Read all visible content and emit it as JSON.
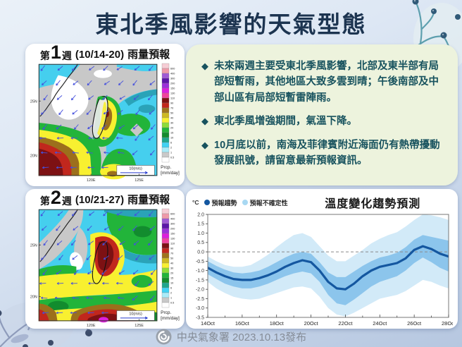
{
  "page": {
    "title": "東北季風影響的天氣型態",
    "footer": {
      "logo": "cwa-swirl-logo",
      "text": "中央氣象署 2023.10.13發布"
    }
  },
  "bulletin": {
    "bullet_glyph": "◆",
    "bullets": [
      "未來兩週主要受東北季風影響，北部及東半部有局部短暫雨，其他地區大致多雲到晴；午後南部及中部山區有局部短暫雷陣雨。",
      "東北季風增強期間，氣溫下降。",
      "10月底以前，南海及菲律賓附近海面仍有熱帶擾動發展訊號，請留意最新預報資訊。"
    ]
  },
  "maps": {
    "week1": {
      "prefix": "第",
      "number": "1",
      "suffix": "週",
      "date_range": "(10/14-20)",
      "label": "雨量預報",
      "lat_ticks": [
        "25N",
        "20N"
      ],
      "lon_ticks": [
        "120E",
        "125E"
      ]
    },
    "week2": {
      "prefix": "第",
      "number": "2",
      "suffix": "週",
      "date_range": "(10/21-27)",
      "label": "雨量預報",
      "lat_ticks": [
        "25N",
        "20N"
      ],
      "lon_ticks": [
        "120E",
        "125E"
      ]
    },
    "wind_ref_label": "10(m/s)",
    "wind_arrow_color": "#4550dd",
    "colorbar": {
      "title": "Prcp.",
      "unit": "[mm/day]",
      "colors_top_to_bottom": [
        "#f6cdd5",
        "#ef9aa9",
        "#a05ad5",
        "#5c16a9",
        "#9b30d9",
        "#dc1fdc",
        "#f0439d",
        "#7d1113",
        "#c1271d",
        "#9e731d",
        "#cdb821",
        "#f8f030",
        "#8edc39",
        "#22b43a",
        "#128c2e",
        "#1fa68c",
        "#40d2f3",
        "#a9ebf8",
        "#c9c9c9",
        "#ffffff"
      ],
      "labels_top_to_bottom": [
        "600",
        "400",
        "300",
        "200",
        "150",
        "130",
        "110",
        "90",
        "70",
        "50",
        "40",
        "30",
        "20",
        "15",
        "10",
        "6",
        "2",
        "1",
        "0.5"
      ]
    }
  },
  "chart_data": {
    "type": "line",
    "title": "溫度變化趨勢預測",
    "y_unit": "°C",
    "legend": [
      {
        "label": "預報趨勢",
        "color": "#1457a0"
      },
      {
        "label": "預報不確定性",
        "color": "#a8d8f2"
      }
    ],
    "xtick_labels": [
      "14Oct",
      "16Oct",
      "18Oct",
      "20Oct",
      "22Oct",
      "24Oct",
      "26Oct",
      "28Oct"
    ],
    "ytick_values": [
      2.0,
      1.5,
      1.0,
      0.5,
      0.0,
      -0.5,
      -1.0,
      -1.5,
      -2.0,
      -2.5,
      -3.0,
      -3.5
    ],
    "ylim": [
      -3.5,
      2.0
    ],
    "zero_reference_line": "dashed",
    "x_days_october": [
      14,
      14.5,
      15,
      15.5,
      16,
      16.5,
      17,
      17.5,
      18,
      18.5,
      19,
      19.5,
      20,
      20.5,
      21,
      21.5,
      22,
      22.5,
      23,
      23.5,
      24,
      24.5,
      25,
      25.5,
      26,
      26.5,
      27,
      27.5,
      28
    ],
    "series": {
      "trend": [
        -0.85,
        -1.1,
        -1.3,
        -1.45,
        -1.5,
        -1.5,
        -1.4,
        -1.25,
        -1.05,
        -0.8,
        -0.6,
        -0.45,
        -0.55,
        -1.0,
        -1.6,
        -1.95,
        -2.0,
        -1.7,
        -1.3,
        -1.0,
        -0.8,
        -0.7,
        -0.6,
        -0.35,
        0.1,
        0.3,
        0.15,
        -0.1,
        -0.25
      ],
      "uncertainty_inner": {
        "upper": [
          -0.5,
          -0.75,
          -0.95,
          -1.1,
          -1.15,
          -1.1,
          -1.0,
          -0.8,
          -0.55,
          -0.3,
          -0.1,
          0.0,
          -0.1,
          -0.55,
          -1.1,
          -1.35,
          -1.35,
          -1.05,
          -0.75,
          -0.5,
          -0.3,
          -0.2,
          -0.05,
          0.25,
          0.65,
          0.9,
          0.8,
          0.7,
          0.6
        ],
        "lower": [
          -1.2,
          -1.45,
          -1.7,
          -1.85,
          -1.95,
          -1.95,
          -1.85,
          -1.7,
          -1.5,
          -1.3,
          -1.15,
          -1.05,
          -1.15,
          -1.6,
          -2.3,
          -2.75,
          -2.85,
          -2.55,
          -2.2,
          -1.85,
          -1.6,
          -1.45,
          -1.3,
          -1.0,
          -0.6,
          -0.3,
          -0.55,
          -0.85,
          -1.05
        ]
      },
      "uncertainty_outer": {
        "upper": [
          -0.25,
          -0.5,
          -0.7,
          -0.8,
          -0.8,
          -0.7,
          -0.45,
          -0.15,
          0.25,
          0.6,
          0.9,
          1.0,
          0.8,
          0.3,
          -0.2,
          -0.5,
          -0.5,
          -0.2,
          0.1,
          0.45,
          0.7,
          0.9,
          1.05,
          1.35,
          1.7,
          2.0,
          1.95,
          1.85,
          1.7
        ],
        "lower": [
          -1.6,
          -1.95,
          -2.2,
          -2.4,
          -2.5,
          -2.55,
          -2.5,
          -2.35,
          -2.2,
          -2.05,
          -1.9,
          -1.85,
          -1.95,
          -2.4,
          -3.0,
          -3.35,
          -3.45,
          -3.25,
          -3.0,
          -2.75,
          -2.5,
          -2.4,
          -2.3,
          -2.1,
          -1.8,
          -1.5,
          -1.6,
          -1.8,
          -1.95
        ]
      }
    },
    "colors": {
      "trend": "#1457a0",
      "inner_band": "#8cc5ec",
      "outer_band": "#d2eaf8"
    }
  }
}
